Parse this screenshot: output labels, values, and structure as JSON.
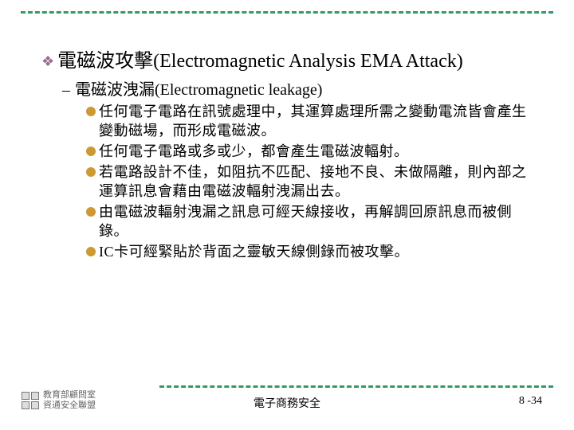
{
  "colors": {
    "rule": "#339966",
    "lvl1_bullet": "#9a6b8f",
    "lvl3_bullet": "#cc9933"
  },
  "lvl1": {
    "text": "電磁波攻擊(Electromagnetic Analysis EMA Attack)"
  },
  "lvl2": {
    "dash": "–",
    "text": "電磁波洩漏(Electromagnetic leakage)"
  },
  "lvl3": [
    "任何電子電路在訊號處理中，其運算處理所需之變動電流皆會產生變動磁場，而形成電磁波。",
    "任何電子電路或多或少，都會產生電磁波輻射。",
    "若電路設計不佳，如阻抗不匹配、接地不良、未做隔離，則內部之運算訊息會藉由電磁波輻射洩漏出去。",
    "由電磁波輻射洩漏之訊息可經天線接收，再解調回原訊息而被側錄。",
    "IC卡可經緊貼於背面之靈敏天線側錄而被攻擊。"
  ],
  "footer": {
    "logo_line1": "教育部顧問室",
    "logo_line2": "資通安全聯盟",
    "center": "電子商務安全",
    "right": "8 -34"
  }
}
